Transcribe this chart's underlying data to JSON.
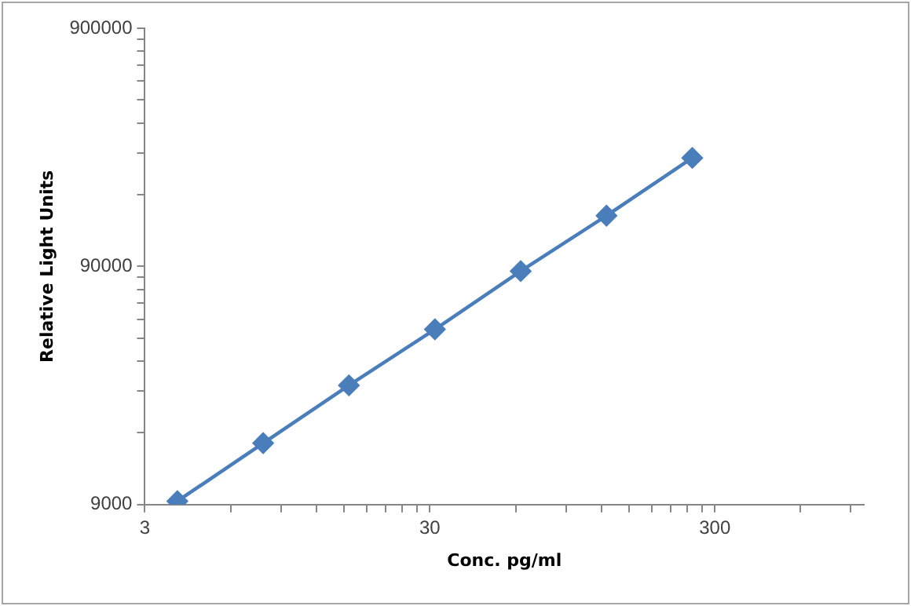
{
  "chart_data": {
    "type": "line",
    "xlabel": "Conc. pg/ml",
    "ylabel": "Relative Light Units",
    "log": "xy",
    "marker": "diamond",
    "line_style": "solid",
    "grid": false,
    "legend": false,
    "x": [
      3.9,
      7.8,
      15.6,
      31.25,
      62.5,
      125,
      250
    ],
    "series": [
      {
        "color": "#4a7ebb",
        "values": [
          9300,
          16300,
          28500,
          49000,
          86000,
          147000,
          257000
        ]
      }
    ],
    "xlim": [
      3,
      1000
    ],
    "xticks": [
      3,
      {
        "value": 6,
        "label": null
      },
      {
        "value": 9,
        "label": null
      },
      {
        "value": 12,
        "label": null
      },
      {
        "value": 15,
        "label": null
      },
      {
        "value": 18,
        "label": null
      },
      {
        "value": 21,
        "label": null
      },
      {
        "value": 24,
        "label": null
      },
      {
        "value": 27,
        "label": null
      },
      30,
      {
        "value": 60,
        "label": null
      },
      {
        "value": 90,
        "label": null
      },
      {
        "value": 120,
        "label": null
      },
      {
        "value": 150,
        "label": null
      },
      {
        "value": 180,
        "label": null
      },
      {
        "value": 210,
        "label": null
      },
      {
        "value": 240,
        "label": null
      },
      {
        "value": 270,
        "label": null
      },
      300,
      {
        "value": 600,
        "label": null
      },
      {
        "value": 900,
        "label": null
      }
    ],
    "ylim": [
      9000,
      900000
    ],
    "yticks": [
      9000,
      {
        "value": 18000,
        "label": null
      },
      {
        "value": 27000,
        "label": null
      },
      {
        "value": 36000,
        "label": null
      },
      {
        "value": 45000,
        "label": null
      },
      {
        "value": 54000,
        "label": null
      },
      {
        "value": 63000,
        "label": null
      },
      {
        "value": 72000,
        "label": null
      },
      {
        "value": 81000,
        "label": null
      },
      90000,
      {
        "value": 180000,
        "label": null
      },
      {
        "value": 270000,
        "label": null
      },
      {
        "value": 360000,
        "label": null
      },
      {
        "value": 450000,
        "label": null
      },
      {
        "value": 540000,
        "label": null
      },
      {
        "value": 630000,
        "label": null
      },
      {
        "value": 720000,
        "label": null
      },
      {
        "value": 810000,
        "label": null
      },
      900000
    ]
  }
}
